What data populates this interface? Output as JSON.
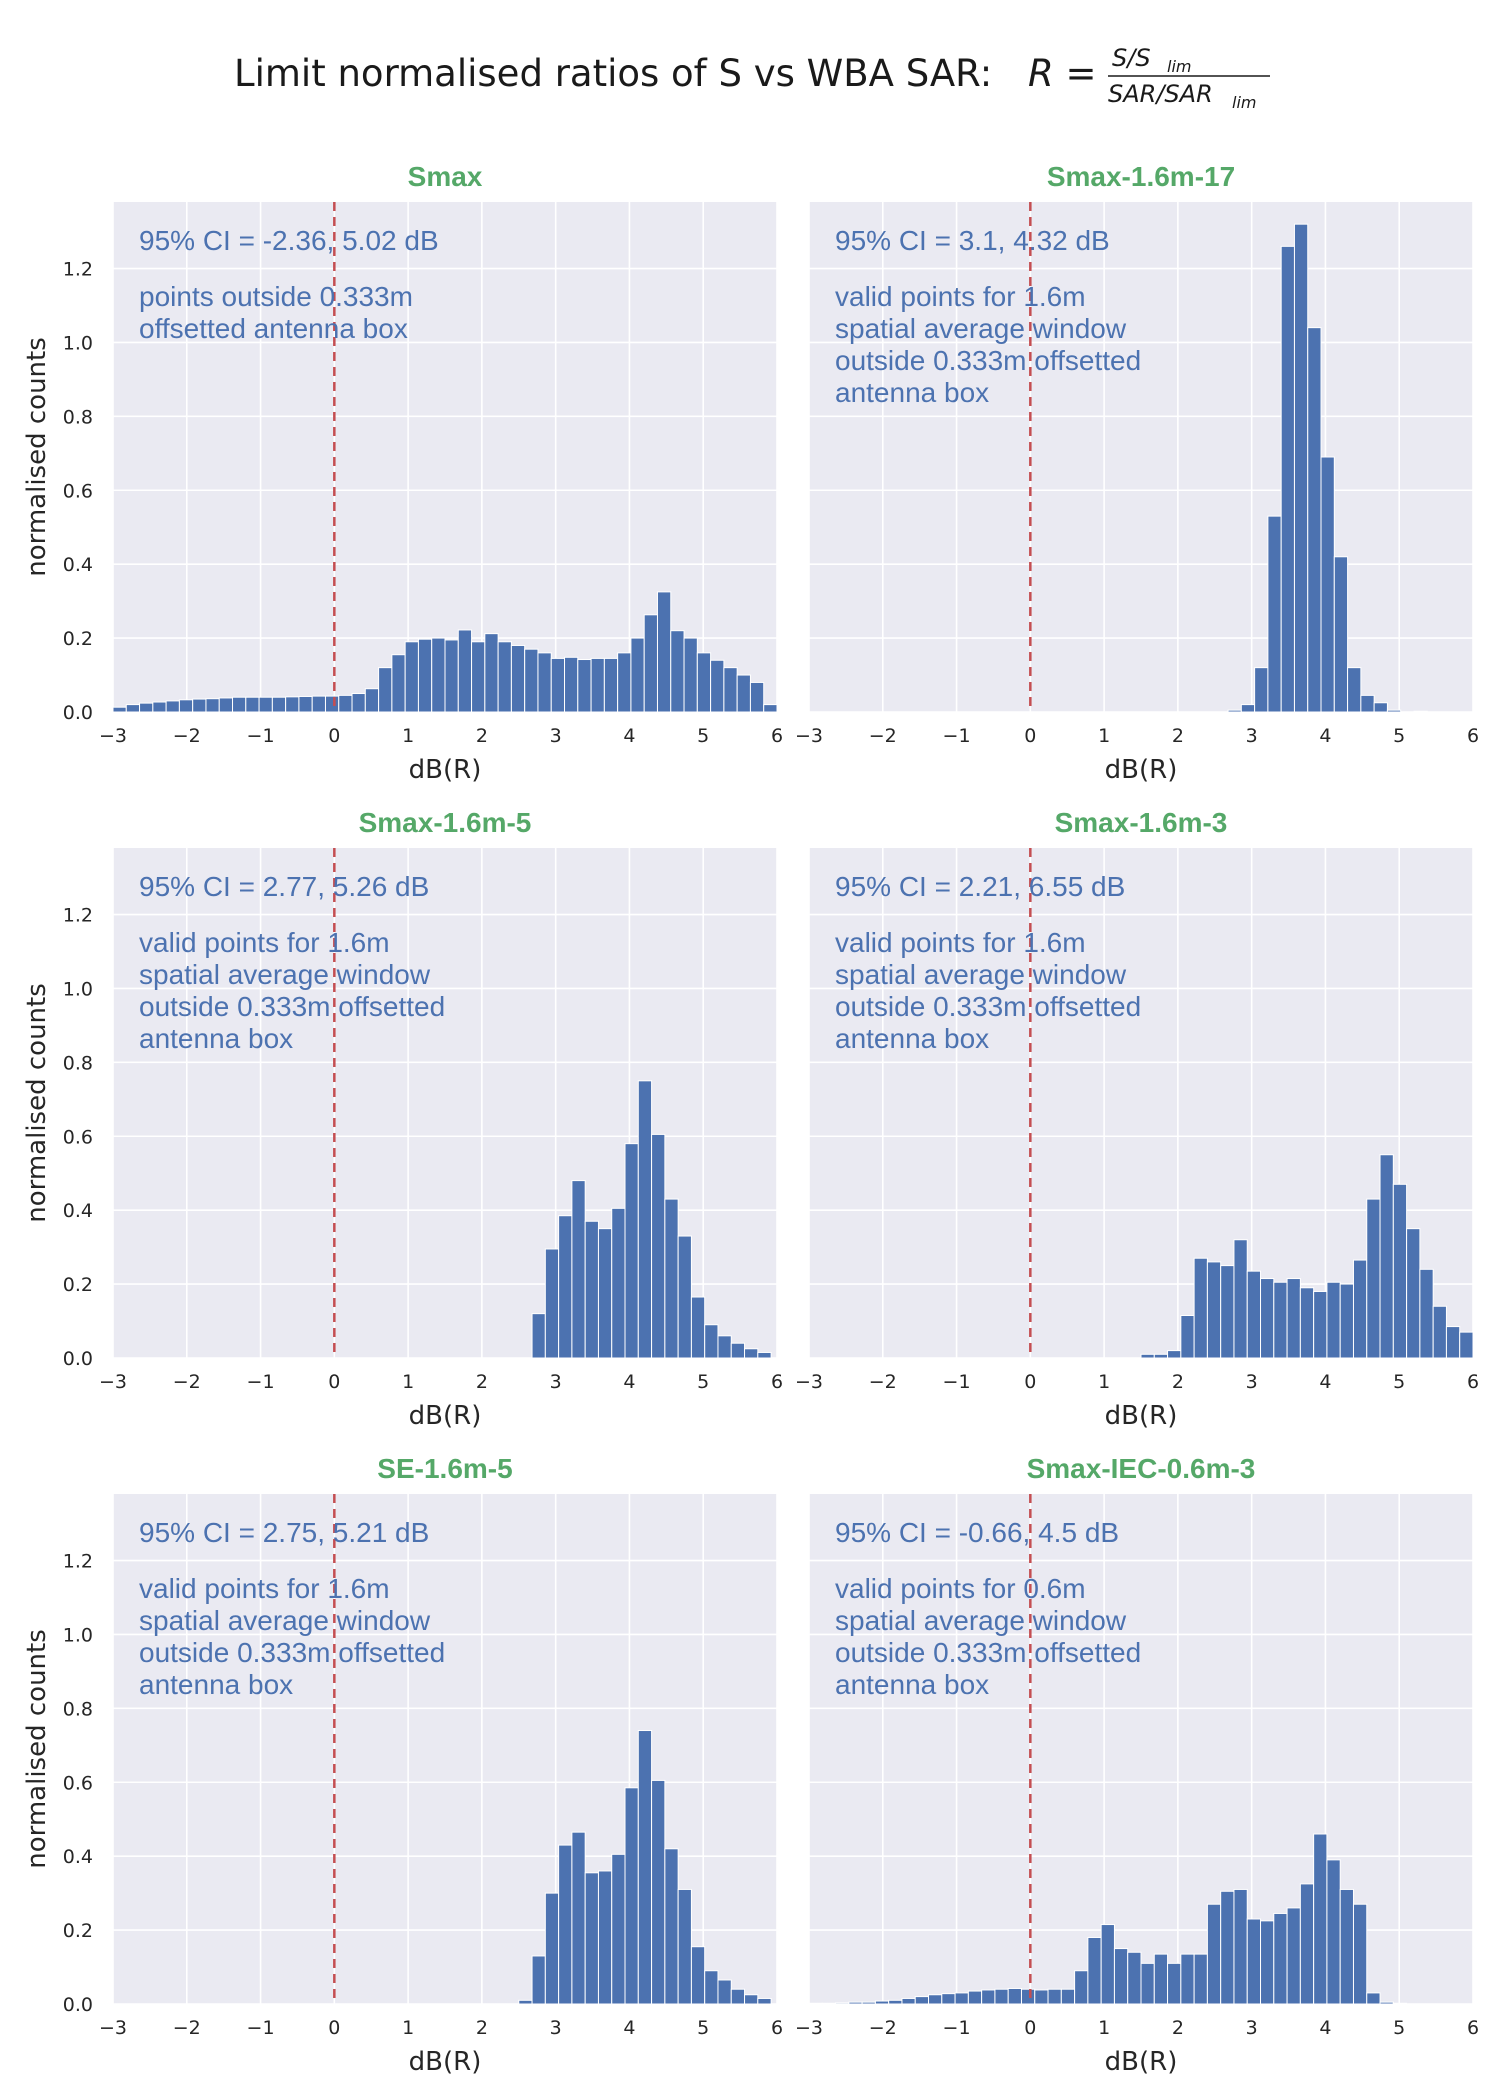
{
  "figure": {
    "title_text": "Limit normalised ratios of S vs WBA SAR:",
    "formula": {
      "lhs": "R =",
      "numerator": "S/S",
      "numerator_sub": "lim",
      "denominator": "SAR/SAR",
      "denominator_sub": "lim"
    }
  },
  "chart_data": [
    {
      "type": "bar",
      "title": "Smax",
      "xlabel": "dB(R)",
      "ylabel": "normalised counts",
      "xlim": [
        -3,
        6
      ],
      "ylim": [
        0,
        1.38
      ],
      "xticks": [
        -3,
        -2,
        -1,
        0,
        1,
        2,
        3,
        4,
        5,
        6
      ],
      "xtick_labels": [
        "−3",
        "−2",
        "−1",
        "0",
        "1",
        "2",
        "3",
        "4",
        "5",
        "6"
      ],
      "yticks": [
        0.0,
        0.2,
        0.4,
        0.6,
        0.8,
        1.0,
        1.2
      ],
      "ytick_labels": [
        "0.0",
        "0.2",
        "0.4",
        "0.6",
        "0.8",
        "1.0",
        "1.2"
      ],
      "grid": true,
      "reference_line_x": 0,
      "ci_text": "95% CI = -2.36, 5.02 dB",
      "note_lines": [
        "points outside 0.333m",
        "offsetted antenna box"
      ],
      "bin_start": -3,
      "bin_width": 0.18,
      "values": [
        0.013,
        0.02,
        0.024,
        0.027,
        0.03,
        0.033,
        0.035,
        0.036,
        0.038,
        0.04,
        0.04,
        0.04,
        0.04,
        0.041,
        0.042,
        0.043,
        0.043,
        0.045,
        0.05,
        0.063,
        0.12,
        0.155,
        0.19,
        0.197,
        0.2,
        0.195,
        0.222,
        0.19,
        0.212,
        0.19,
        0.18,
        0.17,
        0.16,
        0.145,
        0.148,
        0.142,
        0.145,
        0.145,
        0.16,
        0.2,
        0.263,
        0.325,
        0.22,
        0.2,
        0.16,
        0.14,
        0.12,
        0.1,
        0.08,
        0.02
      ]
    },
    {
      "type": "bar",
      "title": "Smax-1.6m-17",
      "xlabel": "dB(R)",
      "ylabel": "",
      "xlim": [
        -3,
        6
      ],
      "ylim": [
        0,
        1.38
      ],
      "xticks": [
        -3,
        -2,
        -1,
        0,
        1,
        2,
        3,
        4,
        5,
        6
      ],
      "xtick_labels": [
        "−3",
        "−2",
        "−1",
        "0",
        "1",
        "2",
        "3",
        "4",
        "5",
        "6"
      ],
      "yticks": [
        0.0,
        0.2,
        0.4,
        0.6,
        0.8,
        1.0,
        1.2
      ],
      "ytick_labels": [],
      "grid": true,
      "reference_line_x": 0,
      "ci_text": "95% CI = 3.1, 4.32 dB",
      "note_lines": [
        "valid points for 1.6m",
        "spatial average window",
        "outside 0.333m offsetted",
        "antenna box"
      ],
      "bin_start": 2.5,
      "bin_width": 0.18,
      "values": [
        0.0,
        0.005,
        0.02,
        0.12,
        0.53,
        1.26,
        1.32,
        1.04,
        0.69,
        0.42,
        0.12,
        0.045,
        0.025,
        0.005,
        0.0,
        0.002
      ]
    },
    {
      "type": "bar",
      "title": "Smax-1.6m-5",
      "xlabel": "dB(R)",
      "ylabel": "normalised counts",
      "xlim": [
        -3,
        6
      ],
      "ylim": [
        0,
        1.38
      ],
      "xticks": [
        -3,
        -2,
        -1,
        0,
        1,
        2,
        3,
        4,
        5,
        6
      ],
      "xtick_labels": [
        "−3",
        "−2",
        "−1",
        "0",
        "1",
        "2",
        "3",
        "4",
        "5",
        "6"
      ],
      "yticks": [
        0.0,
        0.2,
        0.4,
        0.6,
        0.8,
        1.0,
        1.2
      ],
      "ytick_labels": [
        "0.0",
        "0.2",
        "0.4",
        "0.6",
        "0.8",
        "1.0",
        "1.2"
      ],
      "grid": true,
      "reference_line_x": 0,
      "ci_text": "95% CI = 2.77, 5.26 dB",
      "note_lines": [
        "valid points for 1.6m",
        "spatial average window",
        "outside 0.333m offsetted",
        "antenna box"
      ],
      "bin_start": 2.5,
      "bin_width": 0.18,
      "values": [
        0.0,
        0.12,
        0.295,
        0.385,
        0.48,
        0.37,
        0.35,
        0.405,
        0.58,
        0.75,
        0.605,
        0.43,
        0.33,
        0.165,
        0.09,
        0.06,
        0.04,
        0.025,
        0.015
      ]
    },
    {
      "type": "bar",
      "title": "Smax-1.6m-3",
      "xlabel": "dB(R)",
      "ylabel": "",
      "xlim": [
        -3,
        6
      ],
      "ylim": [
        0,
        1.38
      ],
      "xticks": [
        -3,
        -2,
        -1,
        0,
        1,
        2,
        3,
        4,
        5,
        6
      ],
      "xtick_labels": [
        "−3",
        "−2",
        "−1",
        "0",
        "1",
        "2",
        "3",
        "4",
        "5",
        "6"
      ],
      "yticks": [
        0.0,
        0.2,
        0.4,
        0.6,
        0.8,
        1.0,
        1.2
      ],
      "ytick_labels": [],
      "grid": true,
      "reference_line_x": 0,
      "ci_text": "95% CI = 2.21, 6.55 dB",
      "note_lines": [
        "valid points for 1.6m",
        "spatial average window",
        "outside 0.333m offsetted",
        "antenna box"
      ],
      "bin_start": 1.5,
      "bin_width": 0.18,
      "values": [
        0.01,
        0.01,
        0.02,
        0.115,
        0.27,
        0.26,
        0.25,
        0.32,
        0.235,
        0.215,
        0.205,
        0.215,
        0.19,
        0.18,
        0.205,
        0.2,
        0.265,
        0.43,
        0.55,
        0.47,
        0.35,
        0.24,
        0.14,
        0.085,
        0.07
      ]
    },
    {
      "type": "bar",
      "title": "SE-1.6m-5",
      "xlabel": "dB(R)",
      "ylabel": "normalised counts",
      "xlim": [
        -3,
        6
      ],
      "ylim": [
        0,
        1.38
      ],
      "xticks": [
        -3,
        -2,
        -1,
        0,
        1,
        2,
        3,
        4,
        5,
        6
      ],
      "xtick_labels": [
        "−3",
        "−2",
        "−1",
        "0",
        "1",
        "2",
        "3",
        "4",
        "5",
        "6"
      ],
      "yticks": [
        0.0,
        0.2,
        0.4,
        0.6,
        0.8,
        1.0,
        1.2
      ],
      "ytick_labels": [
        "0.0",
        "0.2",
        "0.4",
        "0.6",
        "0.8",
        "1.0",
        "1.2"
      ],
      "grid": true,
      "reference_line_x": 0,
      "ci_text": "95% CI = 2.75, 5.21 dB",
      "note_lines": [
        "valid points for 1.6m",
        "spatial average window",
        "outside 0.333m offsetted",
        "antenna box"
      ],
      "bin_start": 2.5,
      "bin_width": 0.18,
      "values": [
        0.01,
        0.13,
        0.3,
        0.43,
        0.465,
        0.355,
        0.36,
        0.405,
        0.585,
        0.74,
        0.605,
        0.42,
        0.31,
        0.155,
        0.09,
        0.065,
        0.04,
        0.025,
        0.015
      ]
    },
    {
      "type": "bar",
      "title": "Smax-IEC-0.6m-3",
      "xlabel": "dB(R)",
      "ylabel": "",
      "xlim": [
        -3,
        6
      ],
      "ylim": [
        0,
        1.38
      ],
      "xticks": [
        -3,
        -2,
        -1,
        0,
        1,
        2,
        3,
        4,
        5,
        6
      ],
      "xtick_labels": [
        "−3",
        "−2",
        "−1",
        "0",
        "1",
        "2",
        "3",
        "4",
        "5",
        "6"
      ],
      "yticks": [
        0.0,
        0.2,
        0.4,
        0.6,
        0.8,
        1.0,
        1.2
      ],
      "ytick_labels": [],
      "grid": true,
      "reference_line_x": 0,
      "ci_text": "95% CI = -0.66, 4.5 dB",
      "note_lines": [
        "valid points for 0.6m",
        "spatial average window",
        "outside 0.333m offsetted",
        "antenna box"
      ],
      "bin_start": -3,
      "bin_width": 0.18,
      "values": [
        0.002,
        0.002,
        0.003,
        0.005,
        0.005,
        0.008,
        0.01,
        0.015,
        0.02,
        0.025,
        0.028,
        0.03,
        0.035,
        0.038,
        0.04,
        0.042,
        0.04,
        0.038,
        0.04,
        0.04,
        0.09,
        0.18,
        0.215,
        0.15,
        0.14,
        0.11,
        0.135,
        0.11,
        0.135,
        0.135,
        0.27,
        0.305,
        0.31,
        0.23,
        0.225,
        0.245,
        0.26,
        0.325,
        0.46,
        0.39,
        0.31,
        0.27,
        0.03,
        0.005,
        0.002
      ]
    }
  ]
}
